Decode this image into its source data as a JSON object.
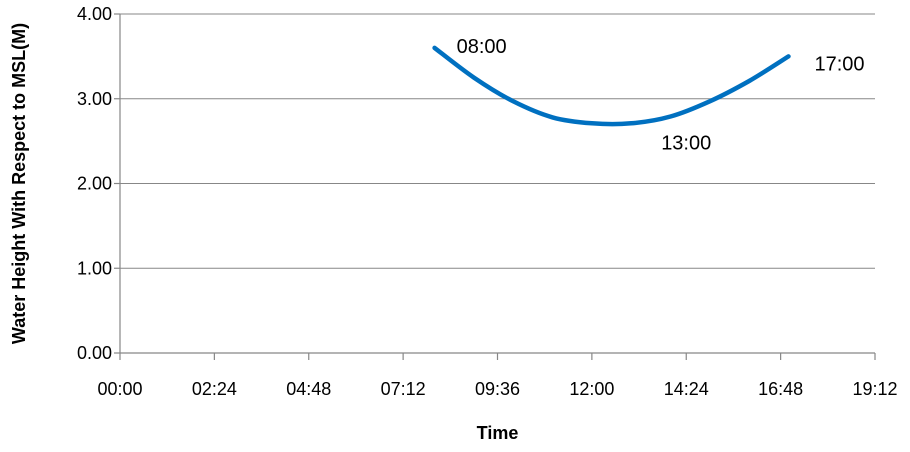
{
  "chart_data": {
    "type": "line",
    "title": "",
    "xlabel": "Time",
    "ylabel": "Water Height With Respect to MSL(M)",
    "xlim": [
      "00:00",
      "19:12"
    ],
    "ylim": [
      0,
      4
    ],
    "x_ticks": [
      "00:00",
      "02:24",
      "04:48",
      "07:12",
      "09:36",
      "12:00",
      "14:24",
      "16:48",
      "19:12"
    ],
    "y_ticks": [
      "0.00",
      "1.00",
      "2.00",
      "3.00",
      "4.00"
    ],
    "grid": "horizontal",
    "legend": "none",
    "series": [
      {
        "color": "#0070C0",
        "x": [
          "08:00",
          "09:00",
          "10:00",
          "11:00",
          "12:00",
          "13:00",
          "14:00",
          "15:00",
          "16:00",
          "17:00"
        ],
        "y": [
          3.6,
          3.25,
          2.97,
          2.78,
          2.71,
          2.71,
          2.79,
          2.97,
          3.21,
          3.5
        ]
      }
    ],
    "annotations": [
      {
        "text": "08:00",
        "x": "08:00",
        "y": 3.6
      },
      {
        "text": "13:00",
        "x": "13:00",
        "y": 2.71
      },
      {
        "text": "17:00",
        "x": "17:00",
        "y": 3.5
      }
    ]
  }
}
